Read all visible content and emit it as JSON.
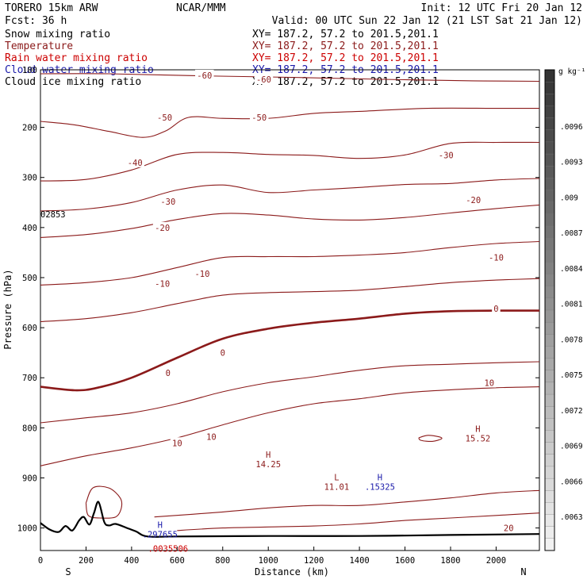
{
  "header": {
    "model": "TORERO  15km ARW",
    "center": "NCAR/MMM",
    "init": "Init: 12 UTC Fri 20 Jan 12",
    "fcst": "Fcst:   36 h",
    "valid": "Valid: 00 UTC Sun 22 Jan 12 (21 LST Sat 21 Jan 12)"
  },
  "fields": [
    {
      "name": "Snow mixing ratio",
      "xy": "XY= 187.2, 57.2 to 201.5,201.1",
      "color": "#000000"
    },
    {
      "name": "Temperature",
      "xy": "XY= 187.2, 57.2 to 201.5,201.1",
      "color": "#8b1a1a"
    },
    {
      "name": "Rain water mixing ratio",
      "xy": "XY= 187.2, 57.2 to 201.5,201.1",
      "color": "#cc0000"
    },
    {
      "name": "Cloud water mixing ratio",
      "xy": "XY= 187.2, 57.2 to 201.5,201.1",
      "color": "#1a1aaa"
    },
    {
      "name": "Cloud ice mixing ratio",
      "xy": "XY= 187.2, 57.2 to 201.5,201.1",
      "color": "#000000"
    }
  ],
  "chart_data": {
    "type": "line",
    "xlabel": "Distance (km)",
    "ylabel": "Pressure (hPa)",
    "xlim": [
      0,
      2190
    ],
    "ylim": [
      1045,
      85
    ],
    "xticks": [
      0,
      200,
      400,
      600,
      800,
      1000,
      1200,
      1400,
      1600,
      1800,
      2000
    ],
    "yticks": [
      200,
      300,
      400,
      500,
      600,
      700,
      800,
      900,
      1000
    ],
    "ytick_top_label": "100",
    "x_end_labels": {
      "left": "S",
      "right": "N"
    },
    "inner_annotation": "02853",
    "colorbar": {
      "unit": "g kg⁻¹",
      "labels": [
        ".0096",
        ".0093",
        ".009",
        ".0087",
        ".0084",
        ".0081",
        ".0078",
        ".0075",
        ".0072",
        ".0069",
        ".0066",
        ".0063"
      ],
      "dark_color": "#333333",
      "light_color": "#f2f2f2"
    },
    "isotherms": [
      {
        "level": -60,
        "bold": false,
        "points": [
          [
            0,
            93
          ],
          [
            300,
            93
          ],
          [
            700,
            97
          ],
          [
            1100,
            100
          ],
          [
            1500,
            104
          ],
          [
            1900,
            107
          ],
          [
            2190,
            108
          ]
        ]
      },
      {
        "level": -50,
        "bold": false,
        "points": [
          [
            0,
            188
          ],
          [
            150,
            195
          ],
          [
            300,
            208
          ],
          [
            450,
            220
          ],
          [
            550,
            207
          ],
          [
            650,
            180
          ],
          [
            800,
            182
          ],
          [
            1000,
            182
          ],
          [
            1200,
            172
          ],
          [
            1400,
            168
          ],
          [
            1700,
            162
          ],
          [
            2000,
            162
          ],
          [
            2190,
            162
          ]
        ]
      },
      {
        "level": -40,
        "bold": false,
        "points": [
          [
            0,
            307
          ],
          [
            200,
            304
          ],
          [
            400,
            285
          ],
          [
            600,
            254
          ],
          [
            800,
            250
          ],
          [
            1000,
            254
          ],
          [
            1200,
            256
          ],
          [
            1400,
            262
          ],
          [
            1600,
            255
          ],
          [
            1800,
            232
          ],
          [
            2000,
            230
          ],
          [
            2190,
            230
          ]
        ]
      },
      {
        "level": -30,
        "bold": false,
        "points": [
          [
            0,
            367
          ],
          [
            200,
            363
          ],
          [
            400,
            350
          ],
          [
            600,
            325
          ],
          [
            800,
            315
          ],
          [
            1000,
            330
          ],
          [
            1200,
            325
          ],
          [
            1400,
            320
          ],
          [
            1600,
            314
          ],
          [
            1800,
            312
          ],
          [
            2000,
            305
          ],
          [
            2190,
            302
          ]
        ]
      },
      {
        "level": -20,
        "bold": false,
        "points": [
          [
            0,
            420
          ],
          [
            200,
            414
          ],
          [
            400,
            402
          ],
          [
            600,
            384
          ],
          [
            800,
            372
          ],
          [
            1000,
            375
          ],
          [
            1200,
            383
          ],
          [
            1400,
            385
          ],
          [
            1600,
            380
          ],
          [
            1800,
            371
          ],
          [
            2000,
            362
          ],
          [
            2190,
            355
          ]
        ]
      },
      {
        "level": -10,
        "bold": false,
        "points": [
          [
            0,
            515
          ],
          [
            200,
            510
          ],
          [
            400,
            500
          ],
          [
            600,
            480
          ],
          [
            800,
            460
          ],
          [
            1000,
            458
          ],
          [
            1200,
            458
          ],
          [
            1400,
            455
          ],
          [
            1600,
            450
          ],
          [
            1800,
            440
          ],
          [
            2000,
            432
          ],
          [
            2190,
            428
          ]
        ]
      },
      {
        "level": -10,
        "bold": false,
        "points": [
          [
            0,
            588
          ],
          [
            200,
            582
          ],
          [
            400,
            570
          ],
          [
            600,
            552
          ],
          [
            800,
            535
          ],
          [
            1000,
            530
          ],
          [
            1200,
            528
          ],
          [
            1400,
            525
          ],
          [
            1600,
            518
          ],
          [
            1800,
            510
          ],
          [
            2000,
            505
          ],
          [
            2190,
            502
          ]
        ]
      },
      {
        "level": 0,
        "bold": true,
        "points": [
          [
            0,
            718
          ],
          [
            150,
            725
          ],
          [
            250,
            720
          ],
          [
            400,
            700
          ],
          [
            600,
            660
          ],
          [
            800,
            622
          ],
          [
            1000,
            602
          ],
          [
            1200,
            590
          ],
          [
            1400,
            582
          ],
          [
            1600,
            572
          ],
          [
            1800,
            567
          ],
          [
            2000,
            566
          ],
          [
            2190,
            566
          ]
        ]
      },
      {
        "level": 10,
        "bold": false,
        "points": [
          [
            0,
            790
          ],
          [
            200,
            780
          ],
          [
            400,
            770
          ],
          [
            600,
            752
          ],
          [
            800,
            728
          ],
          [
            1000,
            710
          ],
          [
            1200,
            698
          ],
          [
            1400,
            685
          ],
          [
            1600,
            676
          ],
          [
            1800,
            673
          ],
          [
            2000,
            670
          ],
          [
            2190,
            668
          ]
        ]
      },
      {
        "level": 10,
        "bold": false,
        "points": [
          [
            0,
            876
          ],
          [
            200,
            856
          ],
          [
            400,
            840
          ],
          [
            600,
            820
          ],
          [
            800,
            794
          ],
          [
            1000,
            770
          ],
          [
            1200,
            752
          ],
          [
            1400,
            742
          ],
          [
            1600,
            730
          ],
          [
            1800,
            724
          ],
          [
            2000,
            720
          ],
          [
            2190,
            718
          ]
        ]
      },
      {
        "level": 20,
        "bold": false,
        "points": [
          [
            500,
            978
          ],
          [
            800,
            968
          ],
          [
            1000,
            960
          ],
          [
            1200,
            955
          ],
          [
            1400,
            955
          ],
          [
            1600,
            948
          ],
          [
            1800,
            940
          ],
          [
            2000,
            930
          ],
          [
            2190,
            925
          ]
        ]
      },
      {
        "level": 20,
        "bold": false,
        "points": [
          [
            600,
            1005
          ],
          [
            800,
            1000
          ],
          [
            1000,
            998
          ],
          [
            1200,
            996
          ],
          [
            1400,
            992
          ],
          [
            1600,
            985
          ],
          [
            1800,
            980
          ],
          [
            2000,
            975
          ],
          [
            2190,
            970
          ]
        ]
      }
    ],
    "isotherm_labels": [
      {
        "text": "-60",
        "x": 720,
        "y": 96
      },
      {
        "text": "-60",
        "x": 980,
        "y": 104
      },
      {
        "text": "-50",
        "x": 545,
        "y": 180
      },
      {
        "text": "-50",
        "x": 960,
        "y": 180
      },
      {
        "text": "-40",
        "x": 415,
        "y": 270
      },
      {
        "text": "-30",
        "x": 1780,
        "y": 255
      },
      {
        "text": "-30",
        "x": 560,
        "y": 348
      },
      {
        "text": "-20",
        "x": 1900,
        "y": 345
      },
      {
        "text": "-20",
        "x": 535,
        "y": 400
      },
      {
        "text": "-10",
        "x": 2000,
        "y": 460
      },
      {
        "text": "-10",
        "x": 535,
        "y": 512
      },
      {
        "text": "-10",
        "x": 710,
        "y": 492
      },
      {
        "text": "0",
        "x": 2000,
        "y": 562
      },
      {
        "text": "0",
        "x": 800,
        "y": 650
      },
      {
        "text": "0",
        "x": 560,
        "y": 690
      },
      {
        "text": "10",
        "x": 1970,
        "y": 710
      },
      {
        "text": "10",
        "x": 600,
        "y": 830
      },
      {
        "text": "10",
        "x": 750,
        "y": 818
      },
      {
        "text": "20",
        "x": 2055,
        "y": 1000
      }
    ],
    "markers": [
      {
        "text": "H",
        "value": "14.25",
        "x": 1000,
        "y": 860,
        "color": "#8b1a1a"
      },
      {
        "text": "L",
        "value": "11.01",
        "x": 1300,
        "y": 905,
        "color": "#8b1a1a"
      },
      {
        "text": "H",
        "value": "15.52",
        "x": 1920,
        "y": 808,
        "color": "#8b1a1a"
      },
      {
        "text": "H",
        "value": ".15325",
        "x": 1490,
        "y": 905,
        "color": "#1a1aaa"
      },
      {
        "text": "H",
        "value": ".297655",
        "x": 525,
        "y": 1000,
        "color": "#1a1aaa"
      },
      {
        "text": "",
        "value": ".0035506",
        "x": 560,
        "y": 1028,
        "color": "#cc0000"
      }
    ],
    "terrain": [
      [
        0,
        990
      ],
      [
        40,
        1003
      ],
      [
        80,
        1008
      ],
      [
        110,
        996
      ],
      [
        140,
        1005
      ],
      [
        170,
        985
      ],
      [
        190,
        978
      ],
      [
        215,
        993
      ],
      [
        235,
        970
      ],
      [
        255,
        948
      ],
      [
        280,
        988
      ],
      [
        300,
        995
      ],
      [
        330,
        992
      ],
      [
        380,
        1000
      ],
      [
        420,
        1007
      ],
      [
        470,
        1017
      ],
      [
        600,
        1017
      ],
      [
        1000,
        1016
      ],
      [
        1400,
        1016
      ],
      [
        1800,
        1014
      ],
      [
        2190,
        1012
      ]
    ],
    "snow_region": [
      [
        200,
        950
      ],
      [
        230,
        920
      ],
      [
        300,
        920
      ],
      [
        350,
        940
      ],
      [
        355,
        960
      ],
      [
        330,
        978
      ],
      [
        260,
        980
      ],
      [
        210,
        975
      ]
    ],
    "cloud_blob": [
      [
        1660,
        820
      ],
      [
        1700,
        815
      ],
      [
        1750,
        818
      ],
      [
        1760,
        822
      ],
      [
        1720,
        827
      ],
      [
        1670,
        825
      ]
    ]
  }
}
